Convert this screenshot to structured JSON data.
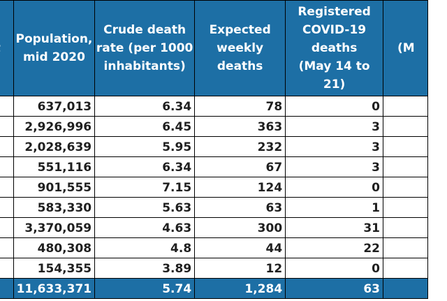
{
  "table": {
    "headers": {
      "left_partial": "t",
      "population": [
        "Population,",
        "mid 2020"
      ],
      "crude_rate": [
        "Crude death",
        "rate (per 1000",
        "inhabitants)"
      ],
      "expected": [
        "Expected",
        "weekly deaths"
      ],
      "registered": [
        "Registered",
        "COVID-19",
        "deaths",
        "(May 14 to 21)"
      ],
      "right_partial": "(M"
    },
    "rows": [
      {
        "population": "637,013",
        "crude_rate": "6.34",
        "expected": "78",
        "covid": "0"
      },
      {
        "population": "2,926,996",
        "crude_rate": "6.45",
        "expected": "363",
        "covid": "3"
      },
      {
        "population": "2,028,639",
        "crude_rate": "5.95",
        "expected": "232",
        "covid": "3"
      },
      {
        "population": "551,116",
        "crude_rate": "6.34",
        "expected": "67",
        "covid": "3"
      },
      {
        "population": "901,555",
        "crude_rate": "7.15",
        "expected": "124",
        "covid": "0"
      },
      {
        "population": "583,330",
        "crude_rate": "5.63",
        "expected": "63",
        "covid": "1"
      },
      {
        "population": "3,370,059",
        "crude_rate": "4.63",
        "expected": "300",
        "covid": "31"
      },
      {
        "population": "480,308",
        "crude_rate": "4.8",
        "expected": "44",
        "covid": "22"
      },
      {
        "population": "154,355",
        "crude_rate": "3.89",
        "expected": "12",
        "covid": "0"
      }
    ],
    "total": {
      "population": "11,633,371",
      "crude_rate": "5.74",
      "expected": "1,284",
      "covid": "63"
    }
  },
  "colors": {
    "header_bg": "#1d6fa5",
    "header_text": "#ffffff",
    "grid": "#000000",
    "cell_text": "#1f1f1f"
  }
}
